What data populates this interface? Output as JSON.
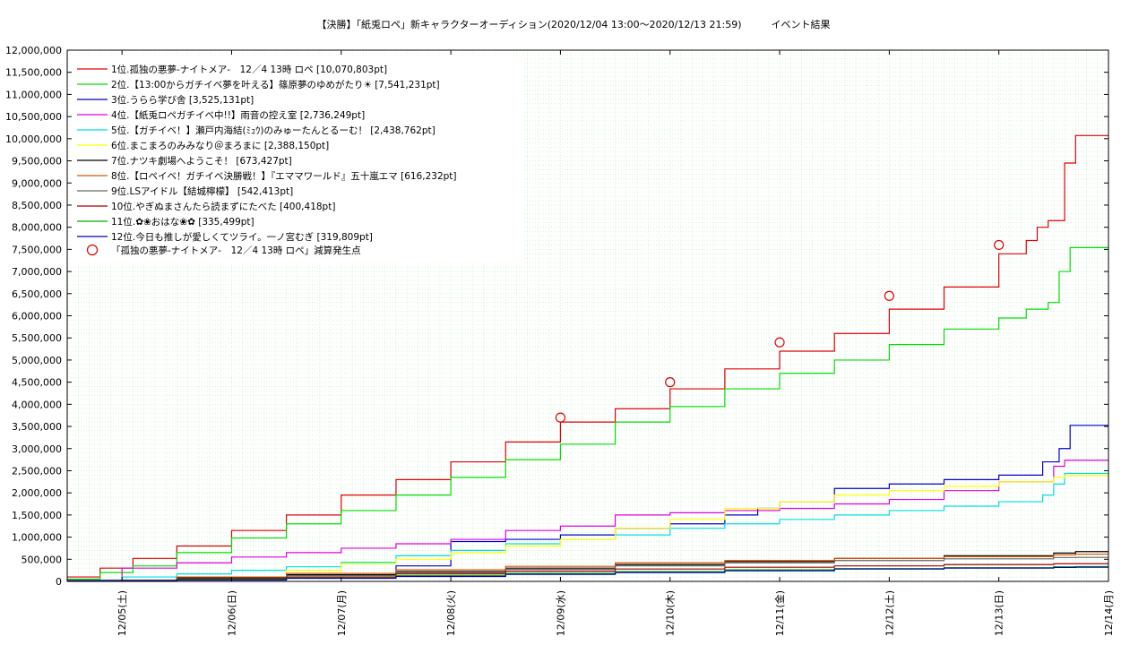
{
  "title": "【決勝】「紙兎ロペ」新キャラクターオーディション(2020/12/04 13:00〜2020/12/13 21:59)　　　イベント結果",
  "chart_data": {
    "type": "line",
    "ylim": [
      0,
      12000000
    ],
    "xlim": [
      0,
      9.5
    ],
    "grid": true,
    "legend_position": "top-left",
    "y_ticks": [
      "0",
      "500,000",
      "1,000,000",
      "1,500,000",
      "2,000,000",
      "2,500,000",
      "3,000,000",
      "3,500,000",
      "4,000,000",
      "4,500,000",
      "5,000,000",
      "5,500,000",
      "6,000,000",
      "6,500,000",
      "7,000,000",
      "7,500,000",
      "8,000,000",
      "8,500,000",
      "9,000,000",
      "9,500,000",
      "10,000,000",
      "10,500,000",
      "11,000,000",
      "11,500,000",
      "12,000,000"
    ],
    "x_ticks": [
      "12/05(土)",
      "12/06(日)",
      "12/07(月)",
      "12/08(火)",
      "12/09(水)",
      "12/10(木)",
      "12/11(金)",
      "12/12(土)",
      "12/13(日)",
      "12/14(月)"
    ],
    "series": [
      {
        "name": "1位.孤独の悪夢-ナイトメア-　12／4 13時 ロペ [10,070,803pt]",
        "color": "#dd0000",
        "x": [
          0,
          0.3,
          0.6,
          1,
          1.5,
          2,
          2.5,
          3,
          3.5,
          4,
          4.5,
          5,
          5.5,
          6,
          6.5,
          7,
          7.5,
          8,
          8.5,
          8.75,
          8.85,
          8.95,
          9.1,
          9.2,
          9.5
        ],
        "values": [
          100000,
          300000,
          520000,
          800000,
          1150000,
          1500000,
          1950000,
          2300000,
          2700000,
          3150000,
          3600000,
          3900000,
          4350000,
          4800000,
          5200000,
          5600000,
          6150000,
          6650000,
          7400000,
          7700000,
          8000000,
          8150000,
          9450000,
          10070803,
          10070803
        ]
      },
      {
        "name": "2位.【13:00からガチイベ夢を叶える】篠原夢のゆめがたり☀ [7,541,231pt]",
        "color": "#00dd00",
        "x": [
          0,
          0.3,
          0.6,
          1,
          1.5,
          2,
          2.5,
          3,
          3.5,
          4,
          4.5,
          5,
          5.5,
          6,
          6.5,
          7,
          7.5,
          8,
          8.5,
          8.75,
          8.95,
          9.05,
          9.15,
          9.2,
          9.5
        ],
        "values": [
          50000,
          200000,
          350000,
          650000,
          980000,
          1300000,
          1600000,
          1950000,
          2350000,
          2750000,
          3100000,
          3600000,
          3950000,
          4350000,
          4700000,
          5000000,
          5350000,
          5700000,
          5950000,
          6150000,
          6300000,
          7000000,
          7541231,
          7541231,
          7541231
        ]
      },
      {
        "name": "3位.うらら学び舎 [3,525,131pt]",
        "color": "#0000cc",
        "x": [
          0,
          1,
          2,
          3,
          3.5,
          4,
          4.5,
          5,
          5.5,
          6,
          6.3,
          6.5,
          7,
          7.5,
          8,
          8.5,
          8.9,
          9.05,
          9.15,
          9.2,
          9.5
        ],
        "values": [
          30000,
          80000,
          150000,
          350000,
          900000,
          950000,
          1050000,
          1200000,
          1300000,
          1500000,
          1650000,
          1800000,
          2100000,
          2200000,
          2300000,
          2400000,
          2700000,
          3000000,
          3525131,
          3525131,
          3525131
        ]
      },
      {
        "name": "4位.【紙兎ロペガチイベ中!!】雨音の控え室 [2,736,249pt]",
        "color": "#dd00dd",
        "x": [
          0,
          0.5,
          1,
          1.5,
          2,
          2.5,
          3,
          3.5,
          4,
          4.5,
          5,
          5.5,
          6,
          6.5,
          7,
          7.5,
          8,
          8.5,
          9,
          9.1,
          9.2,
          9.5
        ],
        "values": [
          20000,
          300000,
          420000,
          550000,
          650000,
          750000,
          850000,
          950000,
          1150000,
          1250000,
          1500000,
          1550000,
          1600000,
          1650000,
          1750000,
          1850000,
          2050000,
          2250000,
          2600000,
          2736249,
          2736249,
          2736249
        ]
      },
      {
        "name": "5位.【ガチイベ！】瀬戸内海結(ﾐｭｳ)のみゅーたんとるーむ！ [2,438,762pt]",
        "color": "#00dddd",
        "x": [
          0,
          0.5,
          1,
          1.5,
          2,
          2.5,
          3,
          3.5,
          4,
          4.5,
          5,
          5.5,
          6,
          6.5,
          7,
          7.5,
          8,
          8.5,
          8.9,
          9.0,
          9.1,
          9.2,
          9.5
        ],
        "values": [
          20000,
          100000,
          170000,
          250000,
          330000,
          430000,
          580000,
          700000,
          850000,
          950000,
          1050000,
          1200000,
          1300000,
          1400000,
          1500000,
          1600000,
          1700000,
          1800000,
          1950000,
          2200000,
          2438762,
          2438762,
          2438762
        ]
      },
      {
        "name": "6位.まこまろのみみなり＠まろまに [2,388,150pt]",
        "color": "#ffff00",
        "x": [
          0,
          1,
          2,
          2.5,
          3,
          3.5,
          4,
          4.5,
          5,
          5.5,
          6,
          6.5,
          7,
          7.5,
          8,
          8.5,
          9,
          9.1,
          9.2,
          9.5
        ],
        "values": [
          20000,
          100000,
          250000,
          400000,
          500000,
          650000,
          800000,
          950000,
          1200000,
          1400000,
          1650000,
          1800000,
          1950000,
          2050000,
          2150000,
          2250000,
          2350000,
          2388150,
          2388150,
          2388150
        ]
      },
      {
        "name": "7位.ナツキ劇場へようこそ！ [673,427pt]",
        "color": "#000000",
        "x": [
          0,
          1,
          2,
          3,
          4,
          5,
          6,
          7,
          8,
          9,
          9.2,
          9.5
        ],
        "values": [
          10000,
          80000,
          150000,
          220000,
          300000,
          380000,
          450000,
          520000,
          580000,
          640000,
          673427,
          673427
        ]
      },
      {
        "name": "8位.【ロペイベ！ガチイベ決勝戦！】『エママワールド』五十嵐エマ [616,232pt]",
        "color": "#dd5500",
        "x": [
          0,
          1,
          2,
          3,
          4,
          5,
          6,
          7,
          8,
          9,
          9.2,
          9.5
        ],
        "values": [
          10000,
          100000,
          180000,
          260000,
          340000,
          420000,
          470000,
          520000,
          560000,
          600000,
          616232,
          616232
        ]
      },
      {
        "name": "9位.LSアイドル【結城檸檬】 [542,413pt]",
        "color": "#666666",
        "x": [
          0,
          1,
          2,
          3,
          4,
          5,
          6,
          7,
          8,
          9,
          9.2,
          9.5
        ],
        "values": [
          10000,
          60000,
          130000,
          200000,
          270000,
          350000,
          420000,
          470000,
          510000,
          540000,
          542413,
          542413
        ]
      },
      {
        "name": "10位.やぎぬまさんたら読まずにたべた [400,418pt]",
        "color": "#aa0000",
        "x": [
          0,
          1,
          2,
          3,
          4,
          5,
          6,
          7,
          8,
          9,
          9.2,
          9.5
        ],
        "values": [
          10000,
          50000,
          100000,
          170000,
          230000,
          280000,
          320000,
          350000,
          380000,
          400000,
          400418,
          400418
        ]
      },
      {
        "name": "11位.✿❀おはな❀✿ [335,499pt]",
        "color": "#00aa00",
        "x": [
          0,
          1,
          2,
          3,
          4,
          5,
          6,
          7,
          8,
          9,
          9.2,
          9.5
        ],
        "values": [
          10000,
          40000,
          80000,
          130000,
          180000,
          220000,
          260000,
          290000,
          310000,
          330000,
          335499,
          335499
        ]
      },
      {
        "name": "12位.今日も推しが愛しくてツライ。一ノ宮むぎ [319,809pt]",
        "color": "#0000aa",
        "x": [
          0,
          1,
          2,
          3,
          4,
          5,
          6,
          7,
          8,
          9,
          9.2,
          9.5
        ],
        "values": [
          10000,
          30000,
          70000,
          110000,
          160000,
          200000,
          240000,
          280000,
          300000,
          315000,
          319809,
          319809
        ]
      }
    ],
    "markers": {
      "label": "「孤独の悪夢-ナイトメア-　12／4 13時 ロペ」減算発生点",
      "color": "#dd0000",
      "x": [
        4.5,
        5.5,
        6.5,
        7.5,
        8.5
      ],
      "values": [
        3700000,
        4500000,
        5400000,
        6450000,
        7600000
      ]
    }
  }
}
